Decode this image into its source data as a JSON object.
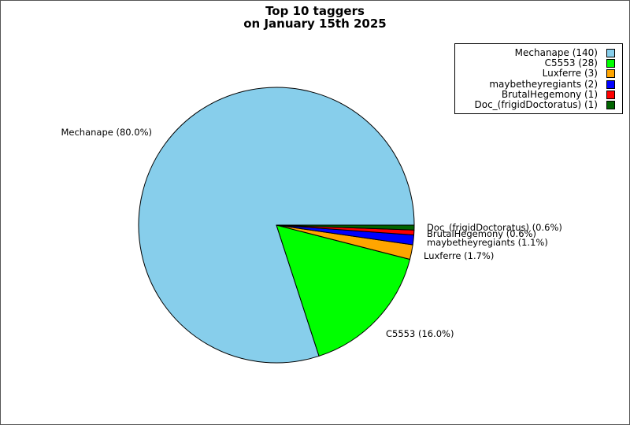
{
  "chart_data": {
    "type": "pie",
    "title_lines": [
      "Top 10 taggers",
      "on January 15th 2025"
    ],
    "legend_position": "top-right",
    "slices": [
      {
        "name": "Mechanape",
        "count": 140,
        "percent": 80.0,
        "color": "#87ceeb",
        "legend_label": "Mechanape (140)",
        "slice_label": "Mechanape (80.0%)"
      },
      {
        "name": "C5553",
        "count": 28,
        "percent": 16.0,
        "color": "#00ff00",
        "legend_label": "C5553 (28)",
        "slice_label": "C5553 (16.0%)"
      },
      {
        "name": "Luxferre",
        "count": 3,
        "percent": 1.7,
        "color": "#ffa500",
        "legend_label": "Luxferre (3)",
        "slice_label": "Luxferre (1.7%)"
      },
      {
        "name": "maybetheyregiants",
        "count": 2,
        "percent": 1.1,
        "color": "#0000ff",
        "legend_label": "maybetheyregiants (2)",
        "slice_label": "maybetheyregiants (1.1%)"
      },
      {
        "name": "BrutalHegemony",
        "count": 1,
        "percent": 0.6,
        "color": "#ff0000",
        "legend_label": "BrutalHegemony (1)",
        "slice_label": "BrutalHegemony (0.6%)"
      },
      {
        "name": "Doc_(frigidDoctoratus)",
        "count": 1,
        "percent": 0.6,
        "color": "#006400",
        "legend_label": "Doc_(frigidDoctoratus) (1)",
        "slice_label": "Doc_(frigidDoctoratus) (0.6%)"
      }
    ]
  }
}
